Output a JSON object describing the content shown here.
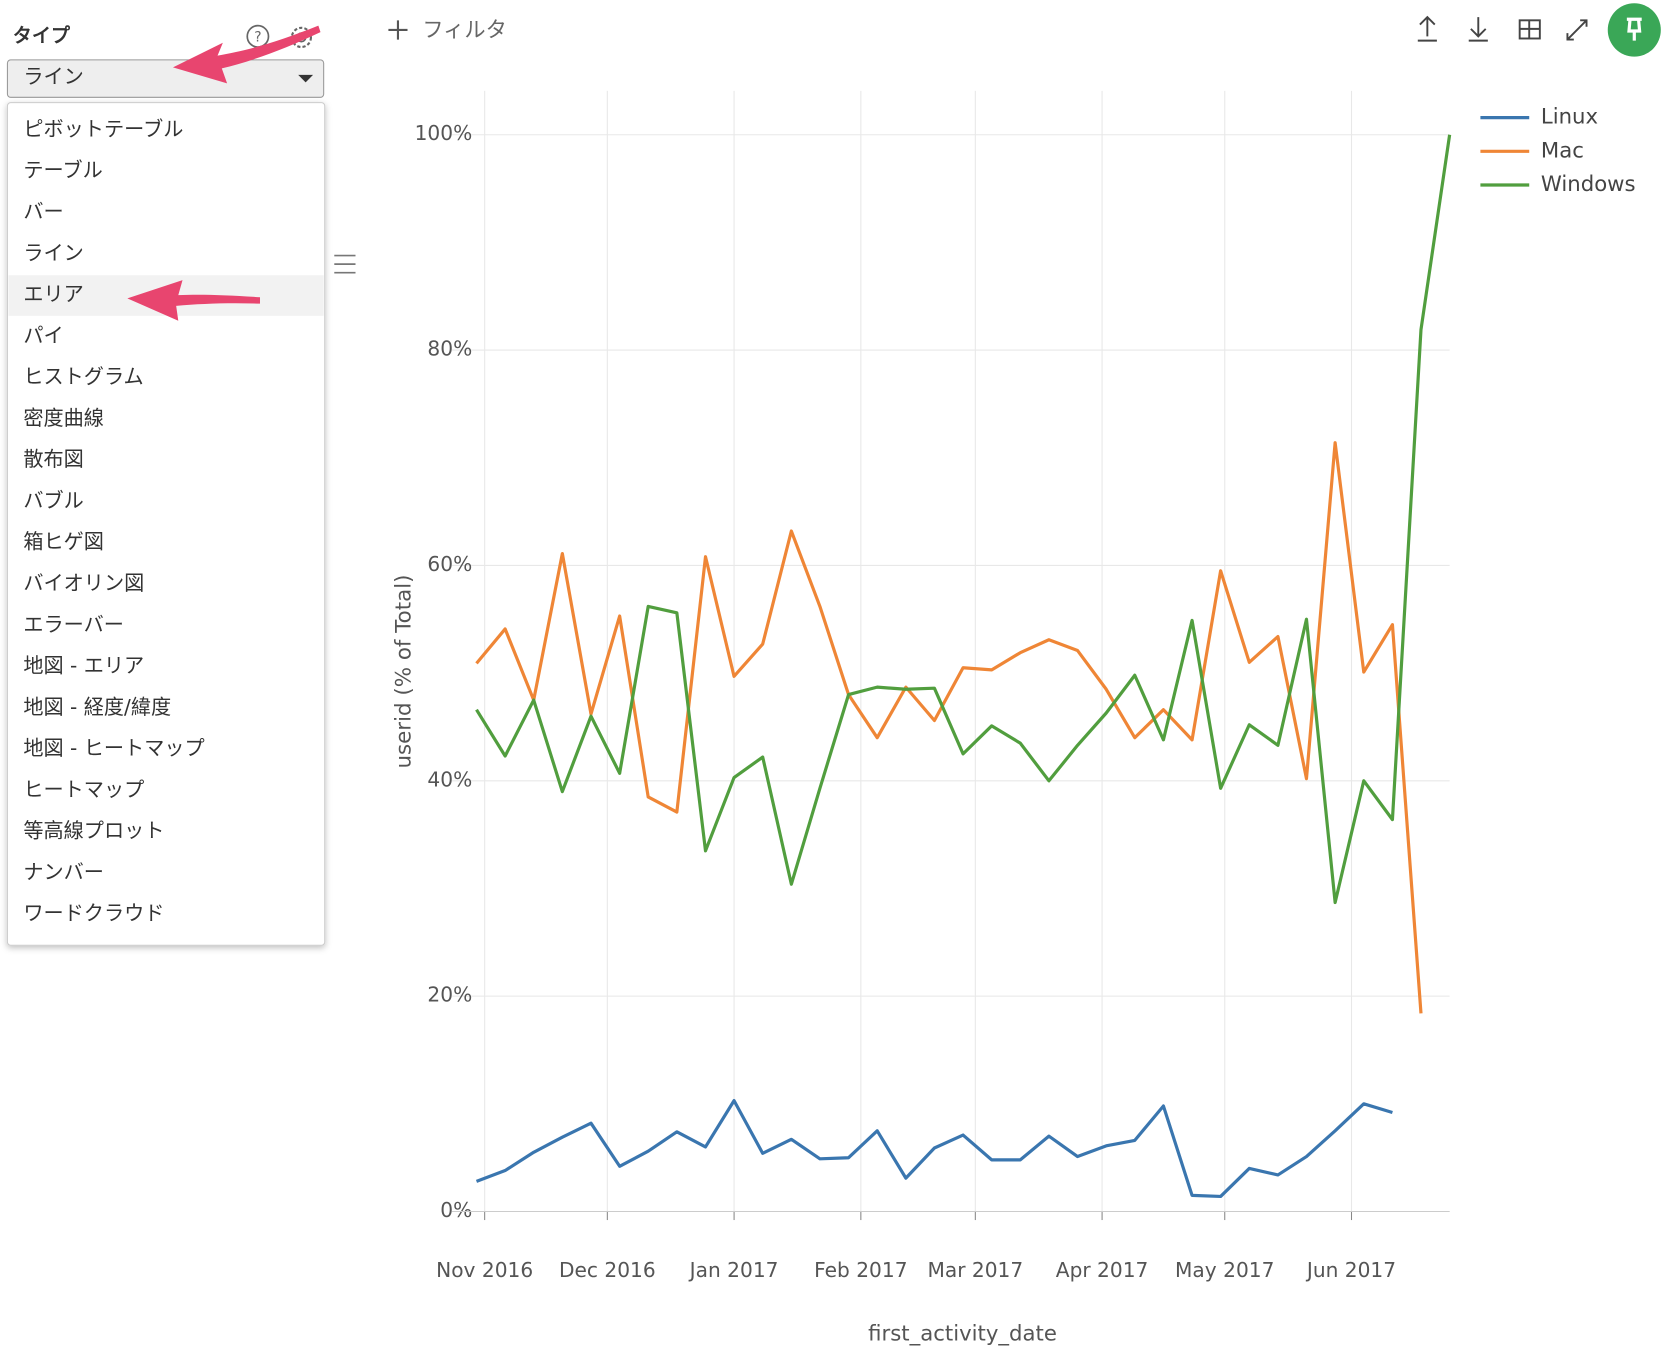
{
  "sidebar": {
    "label": "タイプ",
    "selected": "ライン",
    "options": [
      "ピボットテーブル",
      "テーブル",
      "バー",
      "ライン",
      "エリア",
      "パイ",
      "ヒストグラム",
      "密度曲線",
      "散布図",
      "バブル",
      "箱ヒゲ図",
      "バイオリン図",
      "エラーバー",
      "地図 - エリア",
      "地図 - 経度/緯度",
      "地図 - ヒートマップ",
      "ヒートマップ",
      "等高線プロット",
      "ナンバー",
      "ワードクラウド"
    ],
    "highlighted": 4
  },
  "toolbar": {
    "filter": "フィルタ"
  },
  "chart_data": {
    "type": "line",
    "x_label": "first_activity_date",
    "y_label": "userid (% of Total)",
    "x": [
      "2016-10-30",
      "2016-11-06",
      "2016-11-13",
      "2016-11-20",
      "2016-11-27",
      "2016-12-04",
      "2016-12-11",
      "2016-12-18",
      "2016-12-25",
      "2017-01-01",
      "2017-01-08",
      "2017-01-15",
      "2017-01-22",
      "2017-01-29",
      "2017-02-05",
      "2017-02-12",
      "2017-02-19",
      "2017-02-26",
      "2017-03-05",
      "2017-03-12",
      "2017-03-19",
      "2017-03-26",
      "2017-04-02",
      "2017-04-09",
      "2017-04-16",
      "2017-04-23",
      "2017-04-30",
      "2017-05-07",
      "2017-05-14",
      "2017-05-21",
      "2017-05-28",
      "2017-06-04",
      "2017-06-11",
      "2017-06-18",
      "2017-06-25"
    ],
    "xlim": [
      "2016-10-30",
      "2017-06-25"
    ],
    "xticks": [
      {
        "value": "2016-11-01",
        "label": "Nov 2016"
      },
      {
        "value": "2016-12-01",
        "label": "Dec 2016"
      },
      {
        "value": "2017-01-01",
        "label": "Jan 2017"
      },
      {
        "value": "2017-02-01",
        "label": "Feb 2017"
      },
      {
        "value": "2017-03-01",
        "label": "Mar 2017"
      },
      {
        "value": "2017-04-01",
        "label": "Apr 2017"
      },
      {
        "value": "2017-05-01",
        "label": "May 2017"
      },
      {
        "value": "2017-06-01",
        "label": "Jun 2017"
      }
    ],
    "ylim": [
      0,
      100
    ],
    "yticks": [
      {
        "value": 0,
        "label": "0%"
      },
      {
        "value": 20,
        "label": "20%"
      },
      {
        "value": 40,
        "label": "40%"
      },
      {
        "value": 60,
        "label": "60%"
      },
      {
        "value": 80,
        "label": "80%"
      },
      {
        "value": 100,
        "label": "100%"
      }
    ],
    "grid": true,
    "legend": "top-right",
    "series": [
      {
        "name": "Linux",
        "color": "#3a76af",
        "values": [
          2.8,
          3.8,
          5.5,
          6.9,
          8.2,
          4.2,
          5.6,
          7.4,
          6.0,
          10.3,
          5.4,
          6.7,
          4.9,
          5.0,
          7.5,
          3.1,
          5.9,
          7.1,
          4.8,
          4.8,
          7.0,
          5.1,
          6.1,
          6.6,
          9.8,
          1.5,
          1.4,
          4.0,
          3.4,
          5.1,
          7.5,
          10.0,
          9.2,
          null,
          null
        ]
      },
      {
        "name": "Mac",
        "color": "#ef8636",
        "values": [
          50.9,
          54.1,
          47.5,
          61.1,
          46.2,
          55.3,
          38.5,
          37.1,
          60.8,
          49.7,
          52.7,
          63.2,
          56.2,
          48.0,
          44.0,
          48.7,
          45.6,
          50.5,
          50.3,
          51.9,
          53.1,
          52.1,
          48.5,
          44.0,
          46.6,
          43.8,
          59.5,
          51.0,
          53.4,
          40.2,
          71.4,
          50.1,
          54.5,
          18.4,
          null
        ]
      },
      {
        "name": "Windows",
        "color": "#519e3e",
        "values": [
          46.6,
          42.3,
          47.5,
          39.0,
          46.0,
          40.7,
          56.2,
          55.6,
          33.5,
          40.3,
          42.2,
          30.4,
          39.3,
          48.0,
          48.7,
          48.5,
          48.6,
          42.5,
          45.1,
          43.5,
          40.0,
          43.3,
          46.3,
          49.8,
          43.8,
          54.9,
          39.3,
          45.2,
          43.3,
          55.0,
          28.7,
          40.0,
          36.4,
          81.9,
          100
        ]
      }
    ]
  }
}
